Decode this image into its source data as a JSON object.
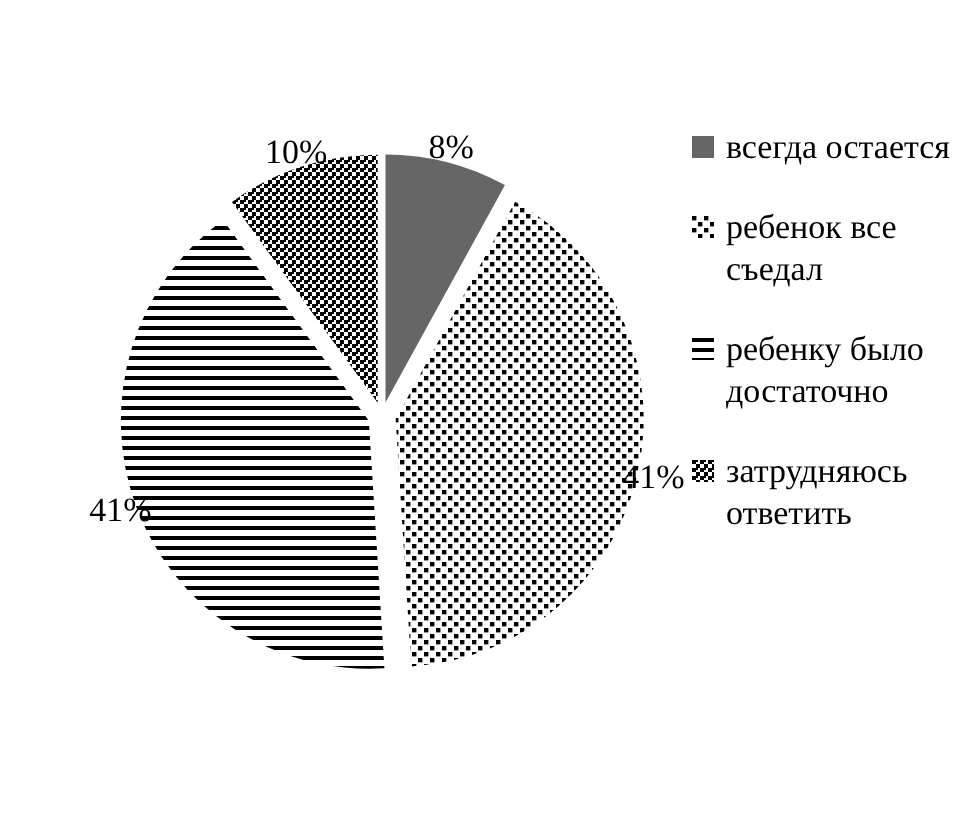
{
  "chart_data": {
    "type": "pie",
    "categories": [
      "всегда остается",
      "ребенок все съедал",
      "ребенку было достаточно",
      "затрудняюсь ответить"
    ],
    "values": [
      8,
      41,
      41,
      10
    ],
    "value_labels": [
      "8%",
      "41%",
      "41%",
      "10%"
    ],
    "colors": [
      "#666666",
      "#000000",
      "#000000",
      "#000000"
    ],
    "legend": "right"
  }
}
